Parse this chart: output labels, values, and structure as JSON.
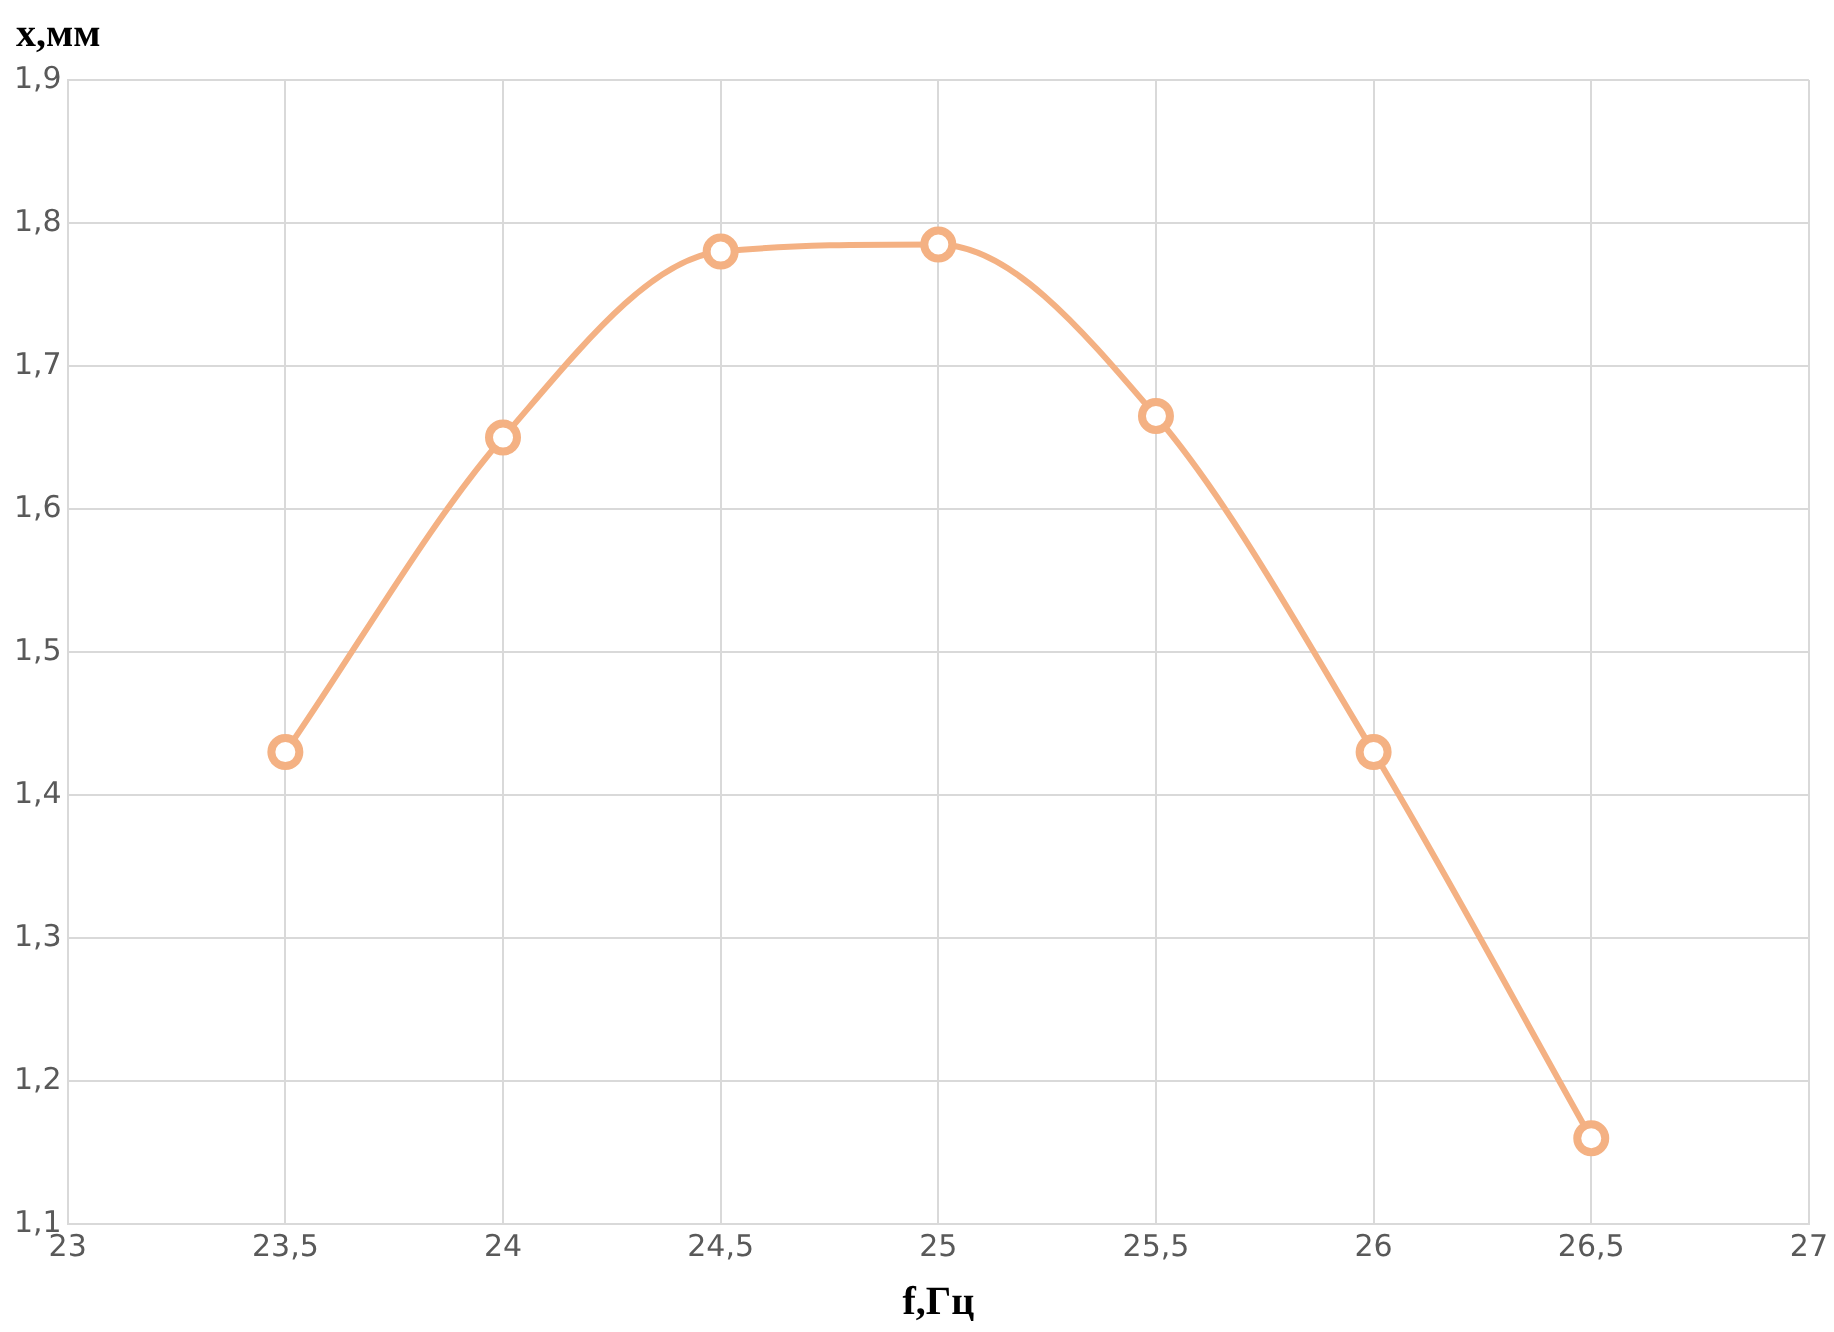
{
  "chart_data": {
    "type": "line",
    "xlabel": "f,Гц",
    "ylabel": "x,мм",
    "x": [
      23.5,
      24,
      24.5,
      25,
      25.5,
      26,
      26.5
    ],
    "series": [
      {
        "color": "#f4b183",
        "values": [
          1.43,
          1.65,
          1.78,
          1.785,
          1.665,
          1.43,
          1.16
        ]
      }
    ],
    "xlim": [
      23,
      27
    ],
    "xticks": [
      23,
      {
        "value": 23.5,
        "label": "23,5"
      },
      24,
      {
        "value": 24.5,
        "label": "24,5"
      },
      25,
      {
        "value": 25.5,
        "label": "25,5"
      },
      26,
      {
        "value": 26.5,
        "label": "26,5"
      },
      27
    ],
    "ylim": [
      1.1,
      1.9
    ],
    "yticks": [
      {
        "value": 1.1,
        "label": "1,1"
      },
      {
        "value": 1.2,
        "label": "1,2"
      },
      {
        "value": 1.3,
        "label": "1,3"
      },
      {
        "value": 1.4,
        "label": "1,4"
      },
      {
        "value": 1.5,
        "label": "1,5"
      },
      {
        "value": 1.6,
        "label": "1,6"
      },
      {
        "value": 1.7,
        "label": "1,7"
      },
      {
        "value": 1.8,
        "label": "1,8"
      },
      {
        "value": 1.9,
        "label": "1,9"
      }
    ],
    "grid": true,
    "legend": false,
    "marker": "circle",
    "line_style": "solid"
  }
}
